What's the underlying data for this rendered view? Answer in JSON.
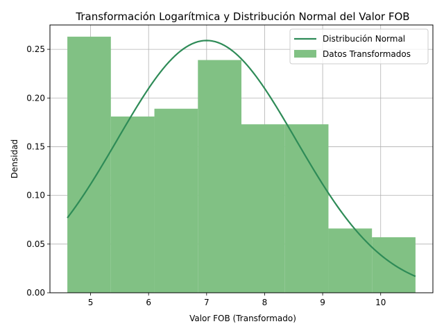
{
  "chart_data": {
    "type": "bar",
    "title": "Transformación Logarítmica y Distribución Normal del Valor FOB",
    "xlabel": "Valor FOB (Transformado)",
    "ylabel": "Densidad",
    "xlim": [
      4.3,
      10.9
    ],
    "ylim": [
      0,
      0.275
    ],
    "xticks": [
      5,
      6,
      7,
      8,
      9,
      10
    ],
    "yticks": [
      0.0,
      0.05,
      0.1,
      0.15,
      0.2,
      0.25
    ],
    "grid": true,
    "legend_position": "top-right",
    "histogram": {
      "name": "Datos Transformados",
      "color": "#81c184",
      "bins": [
        4.6,
        5.35,
        6.1,
        6.85,
        7.6,
        8.35,
        9.1,
        9.85,
        10.6
      ],
      "values": [
        0.263,
        0.181,
        0.189,
        0.239,
        0.173,
        0.173,
        0.066,
        0.057
      ]
    },
    "curve": {
      "name": "Distribución Normal",
      "color": "#2e8b57",
      "type": "line",
      "mean": 7.0,
      "std": 1.54,
      "x_start": 4.6,
      "x_end": 10.6,
      "sample_points": 120
    }
  }
}
